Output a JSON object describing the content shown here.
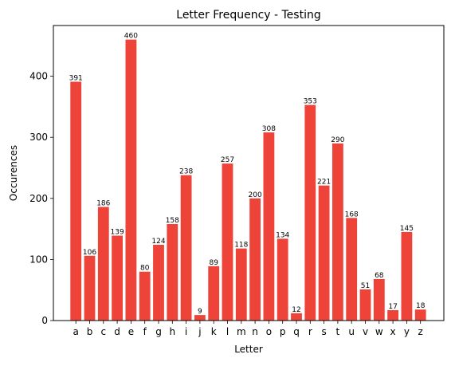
{
  "chart_data": {
    "type": "bar",
    "title": "Letter Frequency - Testing",
    "xlabel": "Letter",
    "ylabel": "Occurences",
    "categories": [
      "a",
      "b",
      "c",
      "d",
      "e",
      "f",
      "g",
      "h",
      "i",
      "j",
      "k",
      "l",
      "m",
      "n",
      "o",
      "p",
      "q",
      "r",
      "s",
      "t",
      "u",
      "v",
      "w",
      "x",
      "y",
      "z"
    ],
    "values": [
      391,
      106,
      186,
      139,
      460,
      80,
      124,
      158,
      238,
      9,
      89,
      257,
      118,
      200,
      308,
      134,
      12,
      353,
      221,
      290,
      168,
      51,
      68,
      17,
      145,
      18
    ],
    "ylim": [
      0,
      483
    ],
    "yticks": [
      0,
      100,
      200,
      300,
      400
    ],
    "bar_color": "#ee4339",
    "grid": false,
    "legend": "none"
  }
}
